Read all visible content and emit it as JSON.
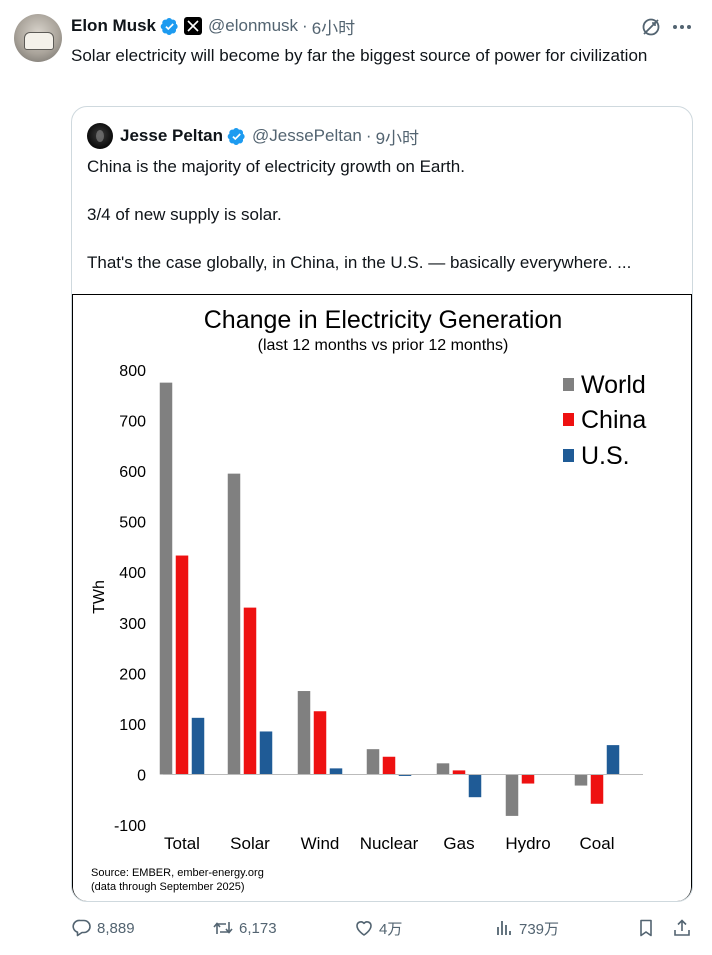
{
  "tweet": {
    "author_name": "Elon Musk",
    "author_handle": "@elonmusk",
    "time": "6小时",
    "text": "Solar electricity will become by far the biggest source of power for civilization"
  },
  "quote": {
    "author_name": "Jesse Peltan",
    "author_handle": "@JessePeltan",
    "time": "9小时",
    "paragraphs": [
      "China is the majority of electricity growth on Earth.",
      "3/4 of new supply is solar.",
      "That's the case globally, in China, in the U.S. — basically everywhere.  ..."
    ]
  },
  "chart_data": {
    "type": "bar",
    "title": "Change in Electricity Generation",
    "subtitle": "(last 12 months vs prior 12 months)",
    "xlabel": "",
    "ylabel": "TWh",
    "ylim": [
      -100,
      800
    ],
    "yticks": [
      "800",
      "700",
      "600",
      "500",
      "400",
      "300",
      "200",
      "100",
      "0",
      "-100"
    ],
    "categories": [
      "Total",
      "Solar",
      "Wind",
      "Nuclear",
      "Gas",
      "Hydro",
      "Coal"
    ],
    "series": [
      {
        "name": "World",
        "color": "#808080",
        "values": [
          775,
          595,
          165,
          50,
          22,
          -82,
          -22
        ]
      },
      {
        "name": "China",
        "color": "#ee1111",
        "values": [
          433,
          330,
          125,
          35,
          8,
          -18,
          -58
        ]
      },
      {
        "name": "U.S.",
        "color": "#1f5b96",
        "values": [
          112,
          85,
          12,
          -2,
          -45,
          0,
          58
        ]
      }
    ],
    "legend_position": "top-right",
    "grid": false,
    "source": "Source: EMBER, ember-energy.org",
    "note": "(data through September 2025)"
  },
  "actions": {
    "replies": "8,889",
    "reposts": "6,173",
    "likes": "4万",
    "views": "739万"
  },
  "colors": {
    "text": "#0f1419",
    "secondary": "#536471",
    "verified": "#1d9bf0",
    "border": "#cfd9de"
  }
}
